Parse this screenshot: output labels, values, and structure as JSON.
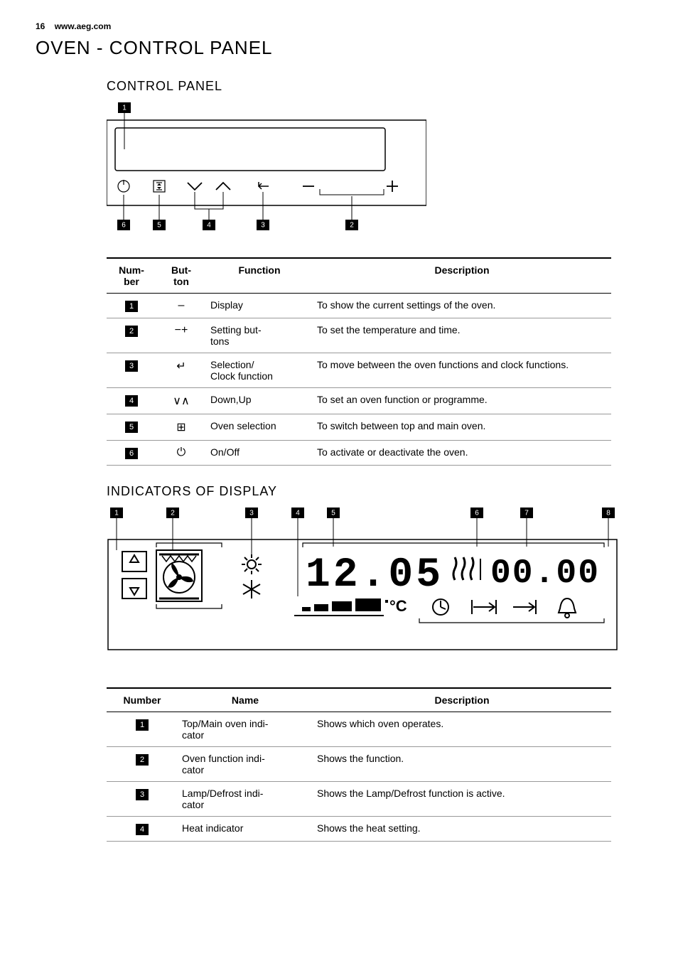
{
  "header": {
    "page_number": "16",
    "url": "www.aeg.com"
  },
  "title": "OVEN - CONTROL PANEL",
  "section1": {
    "heading": "CONTROL PANEL",
    "diagram": {
      "callouts": [
        "1",
        "2",
        "3",
        "4",
        "5",
        "6"
      ],
      "callout_bg_color": "#000000",
      "callout_text_color": "#ffffff",
      "stroke_color": "#000000"
    }
  },
  "table1": {
    "headers": {
      "number": "Num-\nber",
      "button": "But-\nton",
      "function": "Function",
      "description": "Description"
    },
    "rows": [
      {
        "num": "1",
        "button": "–",
        "function": "Display",
        "description": "To show the current settings of the oven."
      },
      {
        "num": "2",
        "button": "−+",
        "function": "Setting but-\ntons",
        "description": "To set the temperature and time."
      },
      {
        "num": "3",
        "button": "↵",
        "function": "Selection/\nClock function",
        "description": "To move between the oven functions and clock functions."
      },
      {
        "num": "4",
        "button": "∨∧",
        "function": "Down,Up",
        "description": "To set an oven function or programme."
      },
      {
        "num": "5",
        "button": "⊞",
        "function": "Oven selection",
        "description": "To switch between top and main oven."
      },
      {
        "num": "6",
        "button": "⏻",
        "function": "On/Off",
        "description": "To activate or deactivate the oven."
      }
    ]
  },
  "section2": {
    "heading": "INDICATORS OF DISPLAY",
    "diagram": {
      "callouts": [
        "1",
        "2",
        "3",
        "4",
        "5",
        "6",
        "7",
        "8"
      ],
      "time_display": "12.05",
      "timer_display": "00.00",
      "temp_unit": "°C"
    }
  },
  "table2": {
    "headers": {
      "number": "Number",
      "name": "Name",
      "description": "Description"
    },
    "rows": [
      {
        "num": "1",
        "name": "Top/Main oven indi-\ncator",
        "description": "Shows which oven operates."
      },
      {
        "num": "2",
        "name": "Oven function indi-\ncator",
        "description": "Shows the function."
      },
      {
        "num": "3",
        "name": "Lamp/Defrost indi-\ncator",
        "description": "Shows the Lamp/Defrost function is active."
      },
      {
        "num": "4",
        "name": "Heat indicator",
        "description": "Shows the heat setting."
      }
    ]
  }
}
